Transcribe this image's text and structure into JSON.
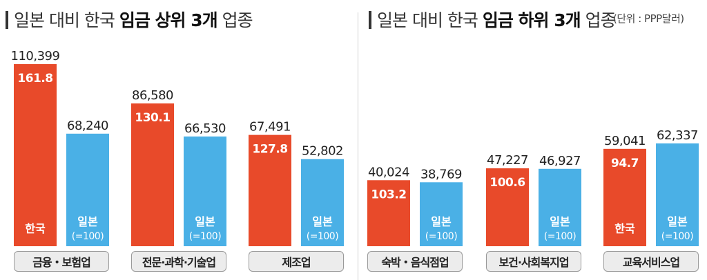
{
  "titles": {
    "left": {
      "prefix": "일본 대비 한국 ",
      "bold1": "임금 상위 3개",
      "suffix": " 업종"
    },
    "right": {
      "prefix": "일본 대비 한국 ",
      "bold1": "임금 하위 3개",
      "suffix": " 업종"
    },
    "unit": "(단위 : PPP달러)"
  },
  "colors": {
    "korea": "#e84a2a",
    "japan": "#4ab0e6",
    "pill_bg": "#ececec",
    "pill_border": "#9a9a9a"
  },
  "series_labels": {
    "korea": "한국",
    "japan_line1": "일본",
    "japan_line2": "(=100)"
  },
  "chart_data": [
    {
      "type": "bar",
      "title": "일본 대비 한국 임금 상위 3개 업종",
      "categories": [
        "금융・보험업",
        "전문·과학·기술업",
        "제조업"
      ],
      "series": [
        {
          "name": "한국",
          "values": [
            110399,
            86580,
            67491
          ],
          "index": [
            "161.8",
            "130.1",
            "127.8"
          ]
        },
        {
          "name": "일본",
          "values": [
            68240,
            66530,
            52802
          ]
        }
      ],
      "korea_label_index": 0,
      "japan_label_indices": [
        0,
        1,
        2
      ],
      "ylim": [
        0,
        115000
      ]
    },
    {
      "type": "bar",
      "title": "일본 대비 한국 임금 하위 3개 업종",
      "categories": [
        "숙박・음식점업",
        "보건·사회복지업",
        "교육서비스업"
      ],
      "series": [
        {
          "name": "한국",
          "values": [
            40024,
            47227,
            59041
          ],
          "index": [
            "103.2",
            "100.6",
            "94.7"
          ]
        },
        {
          "name": "일본",
          "values": [
            38769,
            46927,
            62337
          ]
        }
      ],
      "korea_label_index": 2,
      "japan_label_indices": [
        0,
        1,
        2
      ],
      "ylim": [
        0,
        115000
      ]
    }
  ]
}
